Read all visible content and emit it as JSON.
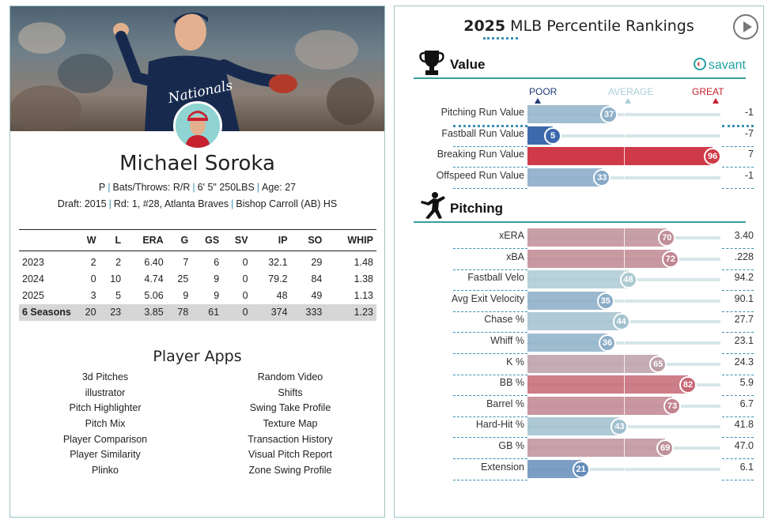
{
  "player": {
    "name": "Michael Soroka",
    "bio_position": "P",
    "bio_bats_throws": "Bats/Throws: R/R",
    "bio_height_weight": "6' 5\" 250LBS",
    "bio_age": "Age: 27",
    "draft": "Draft: 2015",
    "draft_pick": "Rd: 1, #28, Atlanta Braves",
    "school": "Bishop Carroll (AB) HS",
    "jersey_text": "Nationals"
  },
  "stats_table": {
    "headers": [
      "",
      "W",
      "L",
      "ERA",
      "G",
      "GS",
      "SV",
      "IP",
      "SO",
      "WHIP"
    ],
    "rows": [
      [
        "2023",
        "2",
        "2",
        "6.40",
        "7",
        "6",
        "0",
        "32.1",
        "29",
        "1.48"
      ],
      [
        "2024",
        "0",
        "10",
        "4.74",
        "25",
        "9",
        "0",
        "79.2",
        "84",
        "1.38"
      ],
      [
        "2025",
        "3",
        "5",
        "5.06",
        "9",
        "9",
        "0",
        "48",
        "49",
        "1.13"
      ]
    ],
    "total": [
      "6 Seasons",
      "20",
      "23",
      "3.85",
      "78",
      "61",
      "0",
      "374",
      "333",
      "1.23"
    ]
  },
  "apps": {
    "title": "Player Apps",
    "left": [
      "3d Pitches",
      "illustrator",
      "Pitch Highlighter",
      "Pitch Mix",
      "Player Comparison",
      "Player Similarity",
      "Plinko"
    ],
    "right": [
      "Random Video",
      "Shifts",
      "Swing Take Profile",
      "Texture Map",
      "Transaction History",
      "Visual Pitch Report",
      "Zone Swing Profile"
    ]
  },
  "rankings": {
    "title_year": "2025",
    "title_rest": "MLB Percentile Rankings",
    "scale": {
      "poor": "POOR",
      "average": "AVERAGE",
      "great": "GREAT"
    },
    "brand": "savant",
    "value_section": {
      "label": "Value",
      "metrics": [
        {
          "label": "Pitching Run Value",
          "percentile": 37,
          "value": "-1"
        },
        {
          "label": "Fastball Run Value",
          "percentile": 5,
          "value": "-7"
        },
        {
          "label": "Breaking Run Value",
          "percentile": 96,
          "value": "7"
        },
        {
          "label": "Offspeed Run Value",
          "percentile": 33,
          "value": "-1"
        }
      ]
    },
    "pitching_section": {
      "label": "Pitching",
      "metrics": [
        {
          "label": "xERA",
          "percentile": 70,
          "value": "3.40"
        },
        {
          "label": "xBA",
          "percentile": 72,
          "value": ".228"
        },
        {
          "label": "Fastball Velo",
          "percentile": 48,
          "value": "94.2"
        },
        {
          "label": "Avg Exit Velocity",
          "percentile": 35,
          "value": "90.1"
        },
        {
          "label": "Chase %",
          "percentile": 44,
          "value": "27.7"
        },
        {
          "label": "Whiff %",
          "percentile": 36,
          "value": "23.1"
        },
        {
          "label": "K %",
          "percentile": 65,
          "value": "24.3"
        },
        {
          "label": "BB %",
          "percentile": 82,
          "value": "5.9"
        },
        {
          "label": "Barrel %",
          "percentile": 73,
          "value": "6.7"
        },
        {
          "label": "Hard-Hit %",
          "percentile": 43,
          "value": "41.8"
        },
        {
          "label": "GB %",
          "percentile": 69,
          "value": "47.0"
        },
        {
          "label": "Extension",
          "percentile": 21,
          "value": "6.1"
        }
      ]
    }
  },
  "colors": {
    "accent": "#3b8fb3",
    "teal": "#3b9e9e",
    "great": "#d22d3d",
    "poor": "#2f5ea8"
  }
}
